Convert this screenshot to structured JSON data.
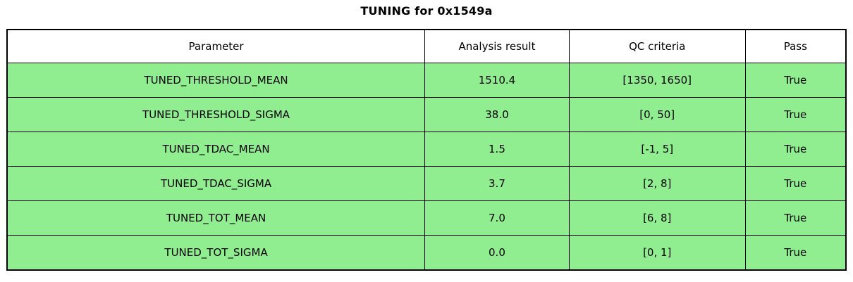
{
  "colors": {
    "pass_row_green": "#90ee90",
    "header_background": "#ffffff",
    "border": "#000000",
    "text": "#000000"
  },
  "chart_data": {
    "type": "table",
    "title": "TUNING for 0x1549a",
    "columns": [
      "Parameter",
      "Analysis result",
      "QC criteria",
      "Pass"
    ],
    "rows": [
      [
        "TUNED_THRESHOLD_MEAN",
        "1510.4",
        "[1350, 1650]",
        "True"
      ],
      [
        "TUNED_THRESHOLD_SIGMA",
        "38.0",
        "[0, 50]",
        "True"
      ],
      [
        "TUNED_TDAC_MEAN",
        "1.5",
        "[-1, 5]",
        "True"
      ],
      [
        "TUNED_TDAC_SIGMA",
        "3.7",
        "[2, 8]",
        "True"
      ],
      [
        "TUNED_TOT_MEAN",
        "7.0",
        "[6, 8]",
        "True"
      ],
      [
        "TUNED_TOT_SIGMA",
        "0.0",
        "[0, 1]",
        "True"
      ]
    ],
    "row_colors": [
      "#90ee90",
      "#90ee90",
      "#90ee90",
      "#90ee90",
      "#90ee90",
      "#90ee90"
    ],
    "layout": {
      "header_background": "#ffffff",
      "grid": true
    }
  }
}
